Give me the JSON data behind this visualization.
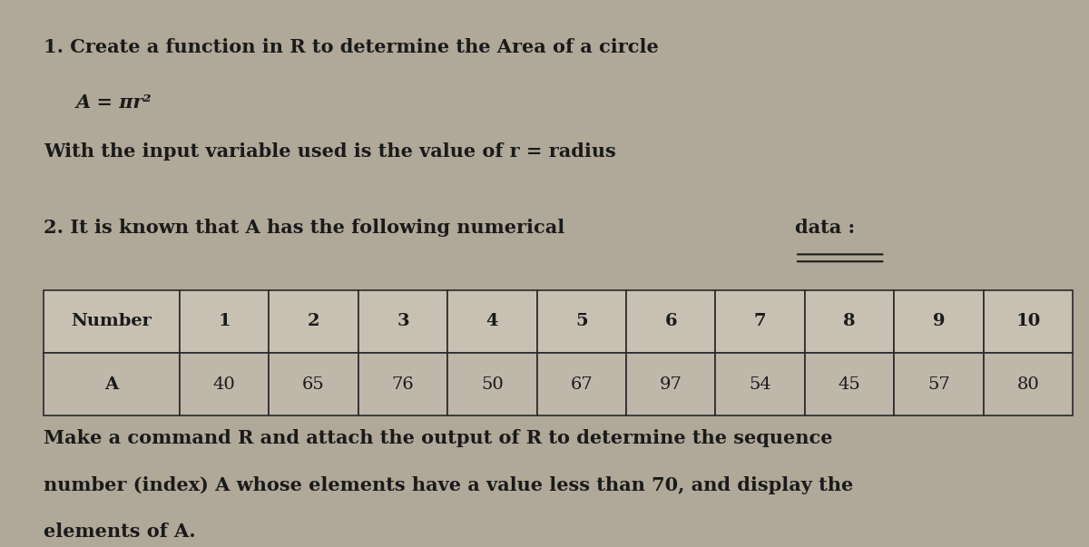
{
  "bg_color": "#b0a898",
  "text_color": "#1a1a1a",
  "title1": "1. Create a function in R to determine the Area of a circle",
  "formula": "A = πr²",
  "subtitle1": "With the input variable used is the value of r = radius",
  "title2_prefix": "2. It is known that A has the following numerical ",
  "title2_underlined": "data :",
  "table_header": [
    "Number",
    "1",
    "2",
    "3",
    "4",
    "5",
    "6",
    "7",
    "8",
    "9",
    "10"
  ],
  "table_row": [
    "A",
    "40",
    "65",
    "76",
    "50",
    "67",
    "97",
    "54",
    "45",
    "57",
    "80"
  ],
  "bottom_text_line1": "Make a command R and attach the output of R to determine the sequence",
  "bottom_text_line2": "number (index) A whose elements have a value less than 70, and display the",
  "bottom_text_line3": "elements of A.",
  "font_size_main": 15,
  "font_size_table": 14
}
